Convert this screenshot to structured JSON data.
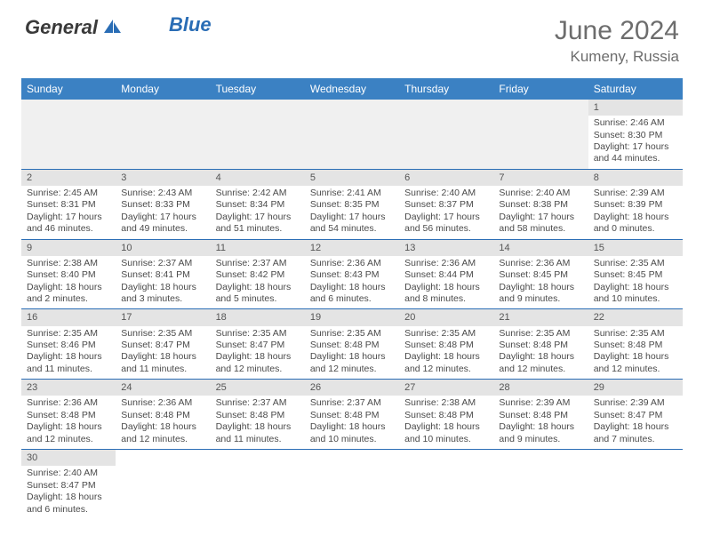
{
  "logo": {
    "general": "General",
    "blue": "Blue"
  },
  "title": "June 2024",
  "location": "Kumeny, Russia",
  "header_bg": "#3b81c3",
  "accent": "#2a6db5",
  "daynum_bg": "#e4e4e4",
  "empty_bg": "#f0f0f0",
  "days_of_week": [
    "Sunday",
    "Monday",
    "Tuesday",
    "Wednesday",
    "Thursday",
    "Friday",
    "Saturday"
  ],
  "weeks": [
    [
      null,
      null,
      null,
      null,
      null,
      null,
      {
        "n": "1",
        "sunrise": "Sunrise: 2:46 AM",
        "sunset": "Sunset: 8:30 PM",
        "daylight": "Daylight: 17 hours and 44 minutes."
      }
    ],
    [
      {
        "n": "2",
        "sunrise": "Sunrise: 2:45 AM",
        "sunset": "Sunset: 8:31 PM",
        "daylight": "Daylight: 17 hours and 46 minutes."
      },
      {
        "n": "3",
        "sunrise": "Sunrise: 2:43 AM",
        "sunset": "Sunset: 8:33 PM",
        "daylight": "Daylight: 17 hours and 49 minutes."
      },
      {
        "n": "4",
        "sunrise": "Sunrise: 2:42 AM",
        "sunset": "Sunset: 8:34 PM",
        "daylight": "Daylight: 17 hours and 51 minutes."
      },
      {
        "n": "5",
        "sunrise": "Sunrise: 2:41 AM",
        "sunset": "Sunset: 8:35 PM",
        "daylight": "Daylight: 17 hours and 54 minutes."
      },
      {
        "n": "6",
        "sunrise": "Sunrise: 2:40 AM",
        "sunset": "Sunset: 8:37 PM",
        "daylight": "Daylight: 17 hours and 56 minutes."
      },
      {
        "n": "7",
        "sunrise": "Sunrise: 2:40 AM",
        "sunset": "Sunset: 8:38 PM",
        "daylight": "Daylight: 17 hours and 58 minutes."
      },
      {
        "n": "8",
        "sunrise": "Sunrise: 2:39 AM",
        "sunset": "Sunset: 8:39 PM",
        "daylight": "Daylight: 18 hours and 0 minutes."
      }
    ],
    [
      {
        "n": "9",
        "sunrise": "Sunrise: 2:38 AM",
        "sunset": "Sunset: 8:40 PM",
        "daylight": "Daylight: 18 hours and 2 minutes."
      },
      {
        "n": "10",
        "sunrise": "Sunrise: 2:37 AM",
        "sunset": "Sunset: 8:41 PM",
        "daylight": "Daylight: 18 hours and 3 minutes."
      },
      {
        "n": "11",
        "sunrise": "Sunrise: 2:37 AM",
        "sunset": "Sunset: 8:42 PM",
        "daylight": "Daylight: 18 hours and 5 minutes."
      },
      {
        "n": "12",
        "sunrise": "Sunrise: 2:36 AM",
        "sunset": "Sunset: 8:43 PM",
        "daylight": "Daylight: 18 hours and 6 minutes."
      },
      {
        "n": "13",
        "sunrise": "Sunrise: 2:36 AM",
        "sunset": "Sunset: 8:44 PM",
        "daylight": "Daylight: 18 hours and 8 minutes."
      },
      {
        "n": "14",
        "sunrise": "Sunrise: 2:36 AM",
        "sunset": "Sunset: 8:45 PM",
        "daylight": "Daylight: 18 hours and 9 minutes."
      },
      {
        "n": "15",
        "sunrise": "Sunrise: 2:35 AM",
        "sunset": "Sunset: 8:45 PM",
        "daylight": "Daylight: 18 hours and 10 minutes."
      }
    ],
    [
      {
        "n": "16",
        "sunrise": "Sunrise: 2:35 AM",
        "sunset": "Sunset: 8:46 PM",
        "daylight": "Daylight: 18 hours and 11 minutes."
      },
      {
        "n": "17",
        "sunrise": "Sunrise: 2:35 AM",
        "sunset": "Sunset: 8:47 PM",
        "daylight": "Daylight: 18 hours and 11 minutes."
      },
      {
        "n": "18",
        "sunrise": "Sunrise: 2:35 AM",
        "sunset": "Sunset: 8:47 PM",
        "daylight": "Daylight: 18 hours and 12 minutes."
      },
      {
        "n": "19",
        "sunrise": "Sunrise: 2:35 AM",
        "sunset": "Sunset: 8:48 PM",
        "daylight": "Daylight: 18 hours and 12 minutes."
      },
      {
        "n": "20",
        "sunrise": "Sunrise: 2:35 AM",
        "sunset": "Sunset: 8:48 PM",
        "daylight": "Daylight: 18 hours and 12 minutes."
      },
      {
        "n": "21",
        "sunrise": "Sunrise: 2:35 AM",
        "sunset": "Sunset: 8:48 PM",
        "daylight": "Daylight: 18 hours and 12 minutes."
      },
      {
        "n": "22",
        "sunrise": "Sunrise: 2:35 AM",
        "sunset": "Sunset: 8:48 PM",
        "daylight": "Daylight: 18 hours and 12 minutes."
      }
    ],
    [
      {
        "n": "23",
        "sunrise": "Sunrise: 2:36 AM",
        "sunset": "Sunset: 8:48 PM",
        "daylight": "Daylight: 18 hours and 12 minutes."
      },
      {
        "n": "24",
        "sunrise": "Sunrise: 2:36 AM",
        "sunset": "Sunset: 8:48 PM",
        "daylight": "Daylight: 18 hours and 12 minutes."
      },
      {
        "n": "25",
        "sunrise": "Sunrise: 2:37 AM",
        "sunset": "Sunset: 8:48 PM",
        "daylight": "Daylight: 18 hours and 11 minutes."
      },
      {
        "n": "26",
        "sunrise": "Sunrise: 2:37 AM",
        "sunset": "Sunset: 8:48 PM",
        "daylight": "Daylight: 18 hours and 10 minutes."
      },
      {
        "n": "27",
        "sunrise": "Sunrise: 2:38 AM",
        "sunset": "Sunset: 8:48 PM",
        "daylight": "Daylight: 18 hours and 10 minutes."
      },
      {
        "n": "28",
        "sunrise": "Sunrise: 2:39 AM",
        "sunset": "Sunset: 8:48 PM",
        "daylight": "Daylight: 18 hours and 9 minutes."
      },
      {
        "n": "29",
        "sunrise": "Sunrise: 2:39 AM",
        "sunset": "Sunset: 8:47 PM",
        "daylight": "Daylight: 18 hours and 7 minutes."
      }
    ],
    [
      {
        "n": "30",
        "sunrise": "Sunrise: 2:40 AM",
        "sunset": "Sunset: 8:47 PM",
        "daylight": "Daylight: 18 hours and 6 minutes."
      },
      null,
      null,
      null,
      null,
      null,
      null
    ]
  ]
}
